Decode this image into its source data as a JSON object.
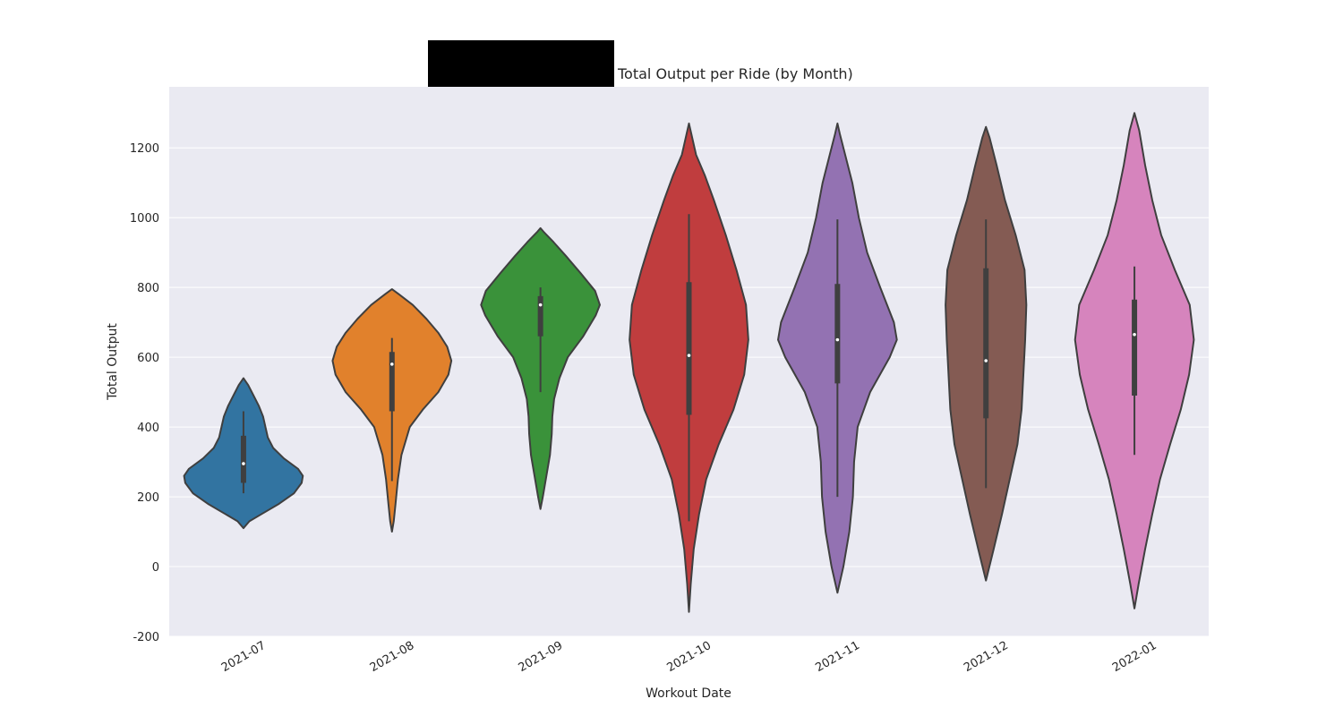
{
  "chart_data": {
    "type": "violin",
    "title": "Total Output per Ride (by Month)",
    "xlabel": "Workout Date",
    "ylabel": "Total Output",
    "ylim": [
      -200,
      1375
    ],
    "yticks": [
      -200,
      0,
      200,
      400,
      600,
      800,
      1000,
      1200
    ],
    "grid": true,
    "background": "#eaeaf2",
    "redaction_box_color": "#000000",
    "categories": [
      "2021-07",
      "2021-08",
      "2021-09",
      "2021-10",
      "2021-11",
      "2021-12",
      "2022-01"
    ],
    "series": [
      {
        "color": "#3274a1",
        "min": 110,
        "max": 540,
        "whisker_low": 210,
        "whisker_high": 445,
        "q1": 240,
        "q3": 375,
        "median": 295,
        "density": [
          [
            110,
            0
          ],
          [
            130,
            0.1
          ],
          [
            150,
            0.3
          ],
          [
            180,
            0.6
          ],
          [
            210,
            0.85
          ],
          [
            240,
            0.98
          ],
          [
            260,
            1.0
          ],
          [
            280,
            0.92
          ],
          [
            310,
            0.68
          ],
          [
            340,
            0.5
          ],
          [
            370,
            0.41
          ],
          [
            400,
            0.37
          ],
          [
            430,
            0.33
          ],
          [
            460,
            0.26
          ],
          [
            490,
            0.17
          ],
          [
            520,
            0.08
          ],
          [
            540,
            0
          ]
        ]
      },
      {
        "color": "#e1812c",
        "min": 100,
        "max": 795,
        "whisker_low": 245,
        "whisker_high": 655,
        "q1": 445,
        "q3": 615,
        "median": 580,
        "density": [
          [
            100,
            0
          ],
          [
            130,
            0.03
          ],
          [
            180,
            0.06
          ],
          [
            250,
            0.1
          ],
          [
            320,
            0.16
          ],
          [
            400,
            0.3
          ],
          [
            450,
            0.52
          ],
          [
            500,
            0.78
          ],
          [
            550,
            0.95
          ],
          [
            590,
            1.0
          ],
          [
            630,
            0.93
          ],
          [
            670,
            0.78
          ],
          [
            710,
            0.58
          ],
          [
            750,
            0.35
          ],
          [
            780,
            0.12
          ],
          [
            795,
            0
          ]
        ]
      },
      {
        "color": "#3a923a",
        "min": 165,
        "max": 970,
        "whisker_low": 500,
        "whisker_high": 800,
        "q1": 660,
        "q3": 775,
        "median": 750,
        "density": [
          [
            165,
            0
          ],
          [
            200,
            0.04
          ],
          [
            260,
            0.1
          ],
          [
            320,
            0.16
          ],
          [
            380,
            0.19
          ],
          [
            430,
            0.2
          ],
          [
            480,
            0.23
          ],
          [
            540,
            0.32
          ],
          [
            600,
            0.46
          ],
          [
            660,
            0.72
          ],
          [
            720,
            0.93
          ],
          [
            750,
            1.0
          ],
          [
            790,
            0.92
          ],
          [
            840,
            0.68
          ],
          [
            890,
            0.43
          ],
          [
            930,
            0.22
          ],
          [
            960,
            0.05
          ],
          [
            970,
            0
          ]
        ]
      },
      {
        "color": "#c03d3e",
        "min": -130,
        "max": 1270,
        "whisker_low": 130,
        "whisker_high": 1010,
        "q1": 435,
        "q3": 815,
        "median": 605,
        "density": [
          [
            -130,
            0
          ],
          [
            -50,
            0.03
          ],
          [
            50,
            0.08
          ],
          [
            150,
            0.17
          ],
          [
            250,
            0.29
          ],
          [
            350,
            0.5
          ],
          [
            450,
            0.75
          ],
          [
            550,
            0.93
          ],
          [
            650,
            1.0
          ],
          [
            750,
            0.96
          ],
          [
            850,
            0.8
          ],
          [
            950,
            0.62
          ],
          [
            1050,
            0.42
          ],
          [
            1120,
            0.27
          ],
          [
            1180,
            0.12
          ],
          [
            1240,
            0.04
          ],
          [
            1270,
            0
          ]
        ]
      },
      {
        "color": "#9372b2",
        "min": -75,
        "max": 1270,
        "whisker_low": 200,
        "whisker_high": 995,
        "q1": 525,
        "q3": 810,
        "median": 650,
        "density": [
          [
            -75,
            0
          ],
          [
            0,
            0.1
          ],
          [
            100,
            0.2
          ],
          [
            200,
            0.26
          ],
          [
            300,
            0.28
          ],
          [
            400,
            0.34
          ],
          [
            500,
            0.55
          ],
          [
            600,
            0.88
          ],
          [
            650,
            1.0
          ],
          [
            700,
            0.95
          ],
          [
            800,
            0.72
          ],
          [
            900,
            0.5
          ],
          [
            1000,
            0.36
          ],
          [
            1100,
            0.25
          ],
          [
            1180,
            0.13
          ],
          [
            1240,
            0.04
          ],
          [
            1270,
            0
          ]
        ]
      },
      {
        "color": "#845b53",
        "min": -40,
        "max": 1260,
        "whisker_low": 225,
        "whisker_high": 995,
        "q1": 425,
        "q3": 855,
        "median": 590,
        "density": [
          [
            -40,
            0
          ],
          [
            50,
            0.13
          ],
          [
            150,
            0.27
          ],
          [
            250,
            0.4
          ],
          [
            350,
            0.53
          ],
          [
            450,
            0.6
          ],
          [
            550,
            0.63
          ],
          [
            650,
            0.66
          ],
          [
            750,
            0.68
          ],
          [
            850,
            0.65
          ],
          [
            950,
            0.5
          ],
          [
            1050,
            0.32
          ],
          [
            1150,
            0.18
          ],
          [
            1230,
            0.06
          ],
          [
            1260,
            0
          ]
        ]
      },
      {
        "color": "#d684bd",
        "min": -120,
        "max": 1300,
        "whisker_low": 320,
        "whisker_high": 860,
        "q1": 490,
        "q3": 765,
        "median": 665,
        "density": [
          [
            -120,
            0
          ],
          [
            -50,
            0.07
          ],
          [
            50,
            0.18
          ],
          [
            150,
            0.3
          ],
          [
            250,
            0.43
          ],
          [
            350,
            0.6
          ],
          [
            450,
            0.78
          ],
          [
            550,
            0.92
          ],
          [
            650,
            1.0
          ],
          [
            750,
            0.93
          ],
          [
            850,
            0.68
          ],
          [
            950,
            0.45
          ],
          [
            1050,
            0.3
          ],
          [
            1150,
            0.18
          ],
          [
            1250,
            0.08
          ],
          [
            1300,
            0
          ]
        ]
      }
    ]
  }
}
